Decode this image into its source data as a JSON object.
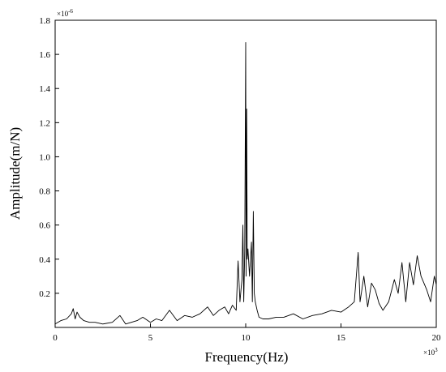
{
  "chart_data": {
    "type": "line",
    "title": "",
    "xlabel": "Frequency(Hz)",
    "ylabel": "Amplitude(m/N)",
    "x_multiplier_label": "×10",
    "x_multiplier_exp": "3",
    "y_multiplier_label": "×10",
    "y_multiplier_exp": "-6",
    "xlim": [
      0,
      20
    ],
    "ylim": [
      0,
      1.8
    ],
    "x_ticks": [
      "0",
      "5",
      "10",
      "15",
      "20"
    ],
    "y_ticks": [
      "0.2",
      "0.4",
      "0.6",
      "0.8",
      "1.0",
      "1.2",
      "1.4",
      "1.6",
      "1.8"
    ],
    "grid": false,
    "line_color": "#000000",
    "series": [
      {
        "x": [
          0.0,
          0.3,
          0.6,
          0.85,
          0.95,
          1.05,
          1.15,
          1.3,
          1.5,
          1.8,
          2.1,
          2.5,
          3.0,
          3.4,
          3.7,
          4.0,
          4.3,
          4.6,
          5.0,
          5.3,
          5.6,
          6.0,
          6.4,
          6.8,
          7.2,
          7.6,
          8.0,
          8.3,
          8.6,
          8.9,
          9.1,
          9.3,
          9.5,
          9.6,
          9.7,
          9.8,
          9.85,
          9.9,
          9.95,
          10.0,
          10.02,
          10.05,
          10.08,
          10.12,
          10.2,
          10.3,
          10.35,
          10.4,
          10.45,
          10.5,
          10.6,
          10.7,
          10.9,
          11.2,
          11.6,
          12.0,
          12.5,
          13.0,
          13.5,
          14.0,
          14.5,
          15.0,
          15.4,
          15.7,
          15.9,
          16.0,
          16.2,
          16.4,
          16.6,
          16.8,
          17.0,
          17.2,
          17.5,
          17.8,
          18.0,
          18.2,
          18.4,
          18.6,
          18.8,
          19.0,
          19.2,
          19.5,
          19.7,
          19.9,
          20.0
        ],
        "y": [
          0.02,
          0.04,
          0.05,
          0.08,
          0.11,
          0.05,
          0.09,
          0.06,
          0.04,
          0.03,
          0.03,
          0.02,
          0.03,
          0.07,
          0.02,
          0.03,
          0.04,
          0.06,
          0.03,
          0.05,
          0.04,
          0.1,
          0.04,
          0.07,
          0.06,
          0.08,
          0.12,
          0.07,
          0.1,
          0.12,
          0.08,
          0.13,
          0.1,
          0.39,
          0.15,
          0.28,
          0.6,
          0.15,
          0.45,
          1.67,
          0.3,
          1.28,
          0.4,
          0.46,
          0.3,
          0.5,
          0.15,
          0.68,
          0.2,
          0.15,
          0.1,
          0.06,
          0.05,
          0.05,
          0.06,
          0.06,
          0.08,
          0.05,
          0.07,
          0.08,
          0.1,
          0.09,
          0.12,
          0.15,
          0.44,
          0.15,
          0.3,
          0.12,
          0.26,
          0.22,
          0.14,
          0.1,
          0.15,
          0.28,
          0.2,
          0.38,
          0.15,
          0.38,
          0.25,
          0.42,
          0.3,
          0.22,
          0.15,
          0.3,
          0.25
        ]
      }
    ]
  }
}
